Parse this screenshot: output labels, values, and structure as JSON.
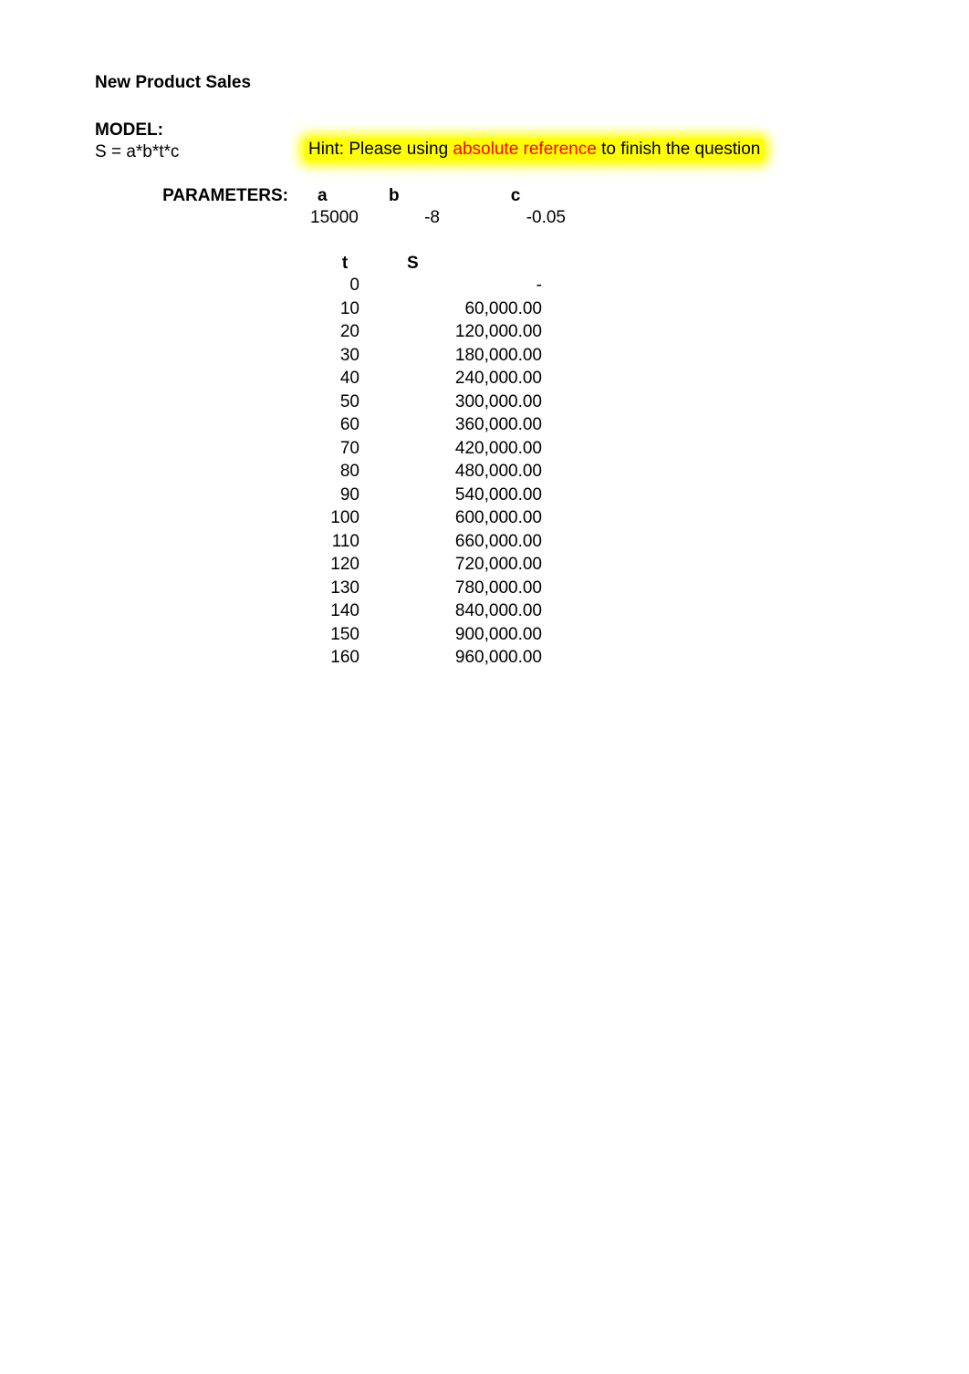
{
  "title": "New Product Sales",
  "model": {
    "label": "MODEL:",
    "equation": "S = a*b*t*c"
  },
  "hint": {
    "prefix": "Hint: Please using ",
    "highlight": "absolute reference",
    "suffix": " to finish the question",
    "bg": "#ffff00",
    "text_color": "#000000",
    "highlight_color": "#ff0000"
  },
  "parameters": {
    "label": "PARAMETERS:",
    "headers": {
      "a": "a",
      "b": "b",
      "c": "c"
    },
    "values": {
      "a": "15000",
      "b": "-8",
      "c": "-0.05"
    }
  },
  "table": {
    "headers": {
      "t": "t",
      "s": "S"
    },
    "rows": [
      {
        "t": "0",
        "s": "-"
      },
      {
        "t": "10",
        "s": "60,000.00"
      },
      {
        "t": "20",
        "s": "120,000.00"
      },
      {
        "t": "30",
        "s": "180,000.00"
      },
      {
        "t": "40",
        "s": "240,000.00"
      },
      {
        "t": "50",
        "s": "300,000.00"
      },
      {
        "t": "60",
        "s": "360,000.00"
      },
      {
        "t": "70",
        "s": "420,000.00"
      },
      {
        "t": "80",
        "s": "480,000.00"
      },
      {
        "t": "90",
        "s": "540,000.00"
      },
      {
        "t": "100",
        "s": "600,000.00"
      },
      {
        "t": "110",
        "s": "660,000.00"
      },
      {
        "t": "120",
        "s": "720,000.00"
      },
      {
        "t": "130",
        "s": "780,000.00"
      },
      {
        "t": "140",
        "s": "840,000.00"
      },
      {
        "t": "150",
        "s": "900,000.00"
      },
      {
        "t": "160",
        "s": "960,000.00"
      }
    ]
  },
  "style": {
    "font_size_pt": 14,
    "background_color": "#ffffff",
    "text_color": "#000000"
  }
}
